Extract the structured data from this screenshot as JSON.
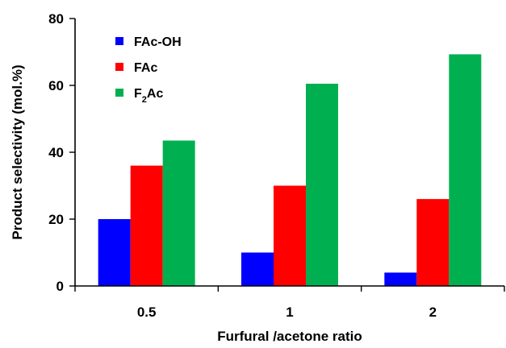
{
  "chart_data": {
    "type": "bar",
    "categories": [
      "0.5",
      "1",
      "2"
    ],
    "series": [
      {
        "name": "FAc-OH",
        "values": [
          20,
          10,
          4
        ],
        "color": "#0000FF"
      },
      {
        "name": "FAc",
        "values": [
          36,
          30,
          26
        ],
        "color": "#FF0000"
      },
      {
        "name": "F2Ac",
        "values": [
          43.5,
          60.5,
          69.3
        ],
        "color": "#00B050"
      }
    ],
    "xlabel": "Furfural /acetone ratio",
    "ylabel": "Product selectivity (mol.%)",
    "ylim": [
      0,
      80
    ],
    "yticks": [
      0,
      20,
      40,
      60,
      80
    ],
    "grid": false,
    "legend_position": "top-left"
  }
}
